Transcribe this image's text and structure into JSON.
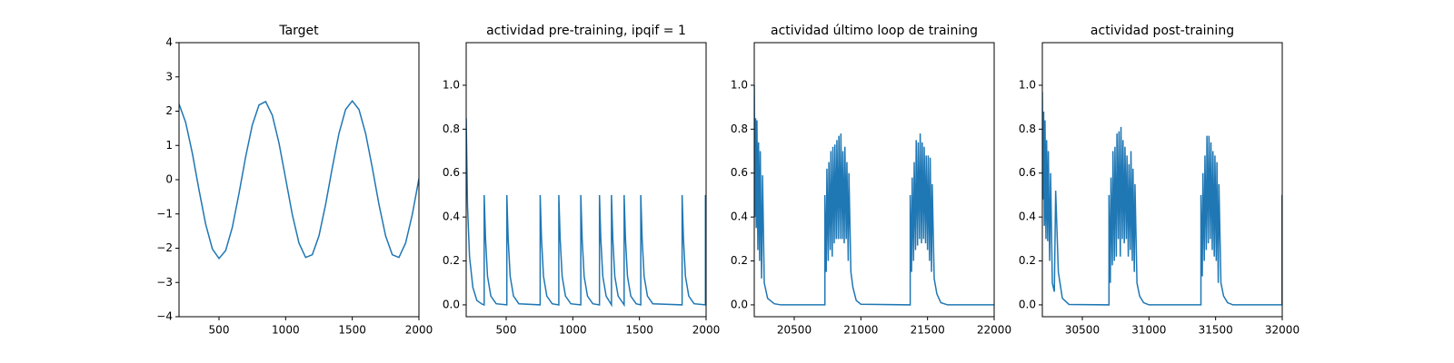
{
  "chart_data": [
    {
      "type": "line",
      "title": "Target",
      "color": "#1f77b4",
      "x": [
        200,
        250,
        300,
        350,
        400,
        450,
        500,
        550,
        600,
        650,
        700,
        750,
        800,
        850,
        900,
        950,
        1000,
        1050,
        1100,
        1150,
        1200,
        1250,
        1300,
        1350,
        1400,
        1450,
        1500,
        1550,
        1600,
        1650,
        1700,
        1750,
        1800,
        1850,
        1900,
        1950,
        2000
      ],
      "values": [
        2.21,
        1.67,
        0.77,
        -0.3,
        -1.3,
        -2.02,
        -2.3,
        -2.07,
        -1.39,
        -0.4,
        0.67,
        1.6,
        2.18,
        2.28,
        1.88,
        1.07,
        0.03,
        -1.02,
        -1.85,
        -2.27,
        -2.19,
        -1.64,
        -0.72,
        0.35,
        1.35,
        2.05,
        2.3,
        2.05,
        1.35,
        0.35,
        -0.72,
        -1.64,
        -2.19,
        -2.27,
        -1.85,
        -1.02,
        0.03
      ],
      "xlim": [
        200,
        2000
      ],
      "xticks": [
        500,
        1000,
        1500,
        2000
      ],
      "ylim": [
        -4,
        4
      ],
      "yticks": [
        {
          "value": -4,
          "label": "−4"
        },
        {
          "value": -3,
          "label": "−3"
        },
        {
          "value": -2,
          "label": "−2"
        },
        {
          "value": -1,
          "label": "−1"
        },
        0,
        1,
        2,
        3,
        4
      ]
    },
    {
      "type": "line",
      "title": "actividad pre-training, ipqif = 1",
      "color": "#1f77b4",
      "x": [
        200,
        210,
        225,
        250,
        280,
        320,
        335,
        335,
        345,
        360,
        385,
        425,
        505,
        505,
        515,
        530,
        555,
        595,
        755,
        755,
        765,
        780,
        805,
        845,
        895,
        895,
        905,
        920,
        945,
        985,
        1060,
        1060,
        1070,
        1085,
        1110,
        1150,
        1200,
        1200,
        1210,
        1225,
        1250,
        1290,
        1290,
        1300,
        1315,
        1340,
        1385,
        1385,
        1395,
        1410,
        1435,
        1475,
        1510,
        1510,
        1520,
        1535,
        1560,
        1600,
        1820,
        1820,
        1830,
        1845,
        1870,
        1910,
        1995,
        1995,
        2000
      ],
      "values": [
        0.85,
        0.45,
        0.22,
        0.08,
        0.02,
        0.003,
        0,
        0.5,
        0.3,
        0.13,
        0.04,
        0.005,
        0,
        0.5,
        0.3,
        0.13,
        0.04,
        0.005,
        0,
        0.5,
        0.3,
        0.13,
        0.04,
        0.005,
        0,
        0.5,
        0.3,
        0.13,
        0.04,
        0.005,
        0,
        0.5,
        0.3,
        0.13,
        0.04,
        0.005,
        0,
        0.5,
        0.3,
        0.13,
        0.04,
        0,
        0.5,
        0.3,
        0.13,
        0.04,
        0,
        0.5,
        0.3,
        0.13,
        0.04,
        0.005,
        0,
        0.5,
        0.3,
        0.13,
        0.04,
        0.005,
        0,
        0.5,
        0.3,
        0.13,
        0.04,
        0.005,
        0,
        0.5,
        0.3
      ],
      "xlim": [
        200,
        2000
      ],
      "xticks": [
        500,
        1000,
        1500,
        2000
      ],
      "ylim": [
        -0.054,
        1.194
      ],
      "yticks": [
        {
          "value": 0,
          "label": "0.0"
        },
        0.2,
        0.4,
        0.6,
        0.8,
        {
          "value": 1,
          "label": "1.0"
        }
      ]
    },
    {
      "type": "line",
      "title": "actividad último loop de training",
      "color": "#1f77b4",
      "x": [
        20200,
        20205,
        20210,
        20215,
        20220,
        20227,
        20232,
        20240,
        20245,
        20255,
        20262,
        20275,
        20300,
        20350,
        20400,
        20730,
        20730,
        20740,
        20745,
        20755,
        20760,
        20770,
        20775,
        20785,
        20790,
        20800,
        20805,
        20815,
        20820,
        20830,
        20835,
        20845,
        20850,
        20860,
        20865,
        20875,
        20880,
        20890,
        20895,
        20905,
        20910,
        20925,
        20940,
        20965,
        21000,
        21370,
        21370,
        21380,
        21385,
        21395,
        21400,
        21410,
        21415,
        21425,
        21430,
        21440,
        21445,
        21455,
        21460,
        21470,
        21475,
        21485,
        21490,
        21500,
        21505,
        21515,
        21520,
        21530,
        21535,
        21550,
        21570,
        21600,
        21650,
        22000
      ],
      "values": [
        1.0,
        0.4,
        0.85,
        0.35,
        0.84,
        0.25,
        0.74,
        0.2,
        0.7,
        0.12,
        0.59,
        0.1,
        0.03,
        0.005,
        0,
        0,
        0.5,
        0.15,
        0.62,
        0.2,
        0.65,
        0.25,
        0.7,
        0.22,
        0.72,
        0.28,
        0.73,
        0.3,
        0.75,
        0.3,
        0.77,
        0.3,
        0.78,
        0.3,
        0.7,
        0.28,
        0.72,
        0.3,
        0.65,
        0.2,
        0.6,
        0.15,
        0.08,
        0.02,
        0.003,
        0,
        0.5,
        0.15,
        0.58,
        0.2,
        0.65,
        0.25,
        0.75,
        0.27,
        0.74,
        0.3,
        0.78,
        0.28,
        0.74,
        0.3,
        0.72,
        0.28,
        0.68,
        0.25,
        0.68,
        0.2,
        0.67,
        0.15,
        0.55,
        0.12,
        0.05,
        0.01,
        0,
        0
      ],
      "xlim": [
        20200,
        22000
      ],
      "xticks": [
        20500,
        21000,
        21500,
        22000
      ],
      "ylim": [
        -0.054,
        1.194
      ],
      "yticks": [
        {
          "value": 0,
          "label": "0.0"
        },
        0.2,
        0.4,
        0.6,
        0.8,
        {
          "value": 1,
          "label": "1.0"
        }
      ]
    },
    {
      "type": "line",
      "title": "actividad post-training",
      "color": "#1f77b4",
      "x": [
        30200,
        30205,
        30210,
        30215,
        30220,
        30227,
        30232,
        30240,
        30245,
        30255,
        30262,
        30275,
        30290,
        30300,
        30320,
        30350,
        30400,
        30700,
        30700,
        30710,
        30715,
        30725,
        30730,
        30740,
        30745,
        30755,
        30760,
        30770,
        30775,
        30785,
        30790,
        30800,
        30805,
        30815,
        30820,
        30830,
        30835,
        30845,
        30850,
        30860,
        30865,
        30875,
        30880,
        30890,
        30895,
        30910,
        30930,
        30960,
        31000,
        31390,
        31390,
        31400,
        31405,
        31415,
        31420,
        31430,
        31435,
        31445,
        31450,
        31460,
        31465,
        31475,
        31480,
        31490,
        31495,
        31505,
        31510,
        31520,
        31525,
        31540,
        31560,
        31590,
        31630,
        31998,
        31998,
        32000
      ],
      "values": [
        0.97,
        0.48,
        0.88,
        0.36,
        0.84,
        0.3,
        0.75,
        0.29,
        0.7,
        0.2,
        0.6,
        0.1,
        0.06,
        0.52,
        0.15,
        0.03,
        0.002,
        0,
        0.5,
        0.1,
        0.58,
        0.18,
        0.7,
        0.2,
        0.72,
        0.22,
        0.78,
        0.3,
        0.79,
        0.22,
        0.81,
        0.3,
        0.75,
        0.28,
        0.72,
        0.3,
        0.68,
        0.22,
        0.64,
        0.25,
        0.7,
        0.2,
        0.62,
        0.15,
        0.55,
        0.1,
        0.04,
        0.01,
        0,
        0,
        0.5,
        0.13,
        0.6,
        0.2,
        0.68,
        0.25,
        0.77,
        0.28,
        0.77,
        0.3,
        0.74,
        0.25,
        0.7,
        0.22,
        0.68,
        0.2,
        0.65,
        0.1,
        0.55,
        0.1,
        0.04,
        0.01,
        0,
        0,
        0.5,
        0.4
      ],
      "xlim": [
        30200,
        32000
      ],
      "xticks": [
        30500,
        31000,
        31500,
        32000
      ],
      "ylim": [
        -0.054,
        1.194
      ],
      "yticks": [
        {
          "value": 0,
          "label": "0.0"
        },
        0.2,
        0.4,
        0.6,
        0.8,
        {
          "value": 1,
          "label": "1.0"
        }
      ]
    }
  ]
}
